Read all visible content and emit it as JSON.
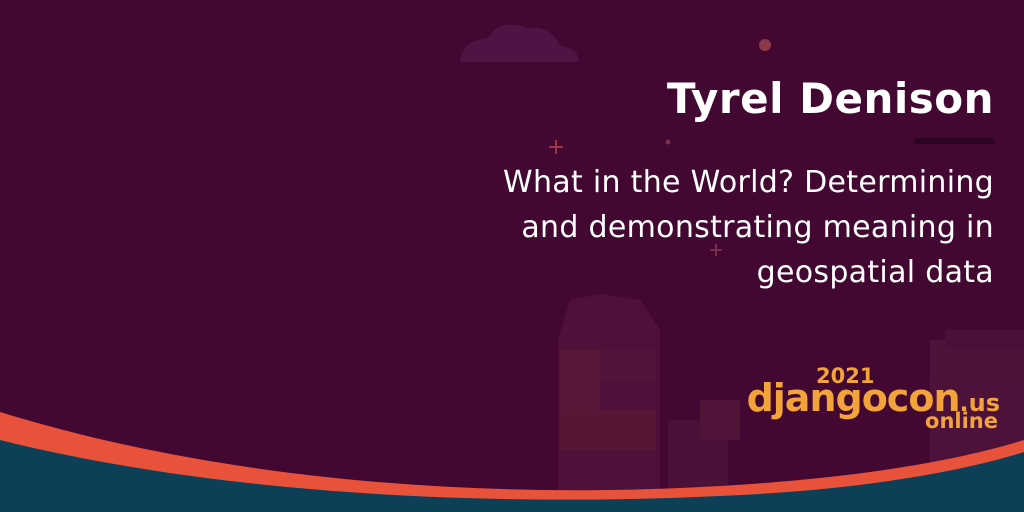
{
  "speaker": {
    "name": "Tyrel Denison"
  },
  "talk": {
    "title": "What in the World? Determining and demonstrating meaning in geospatial data"
  },
  "logo": {
    "year": "2021",
    "brand": "djangocon",
    "tld": ".us",
    "edition": "online"
  },
  "colors": {
    "background": "#430832",
    "wave_orange": "#e8523a",
    "wave_navy": "#0d3f57",
    "accent_gold": "#f2a43a"
  }
}
